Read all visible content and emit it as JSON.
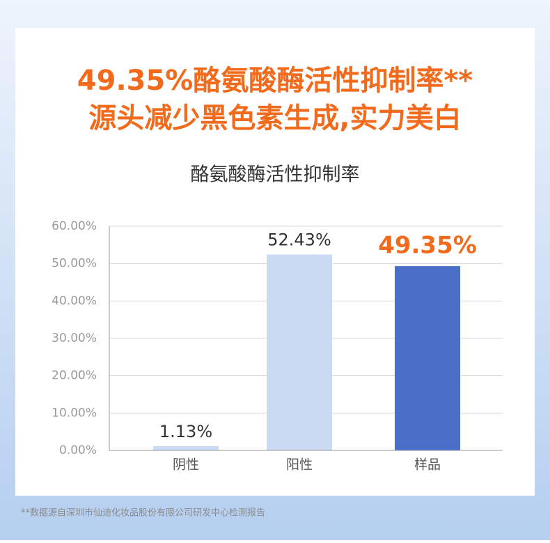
{
  "headline": [
    "49.35%酪氨酸酶活性抑制率**",
    "源头减少黑色素生成,实力美白"
  ],
  "chart_data": {
    "type": "bar",
    "title": "酪氨酸酶活性抑制率",
    "categories": [
      "阴性",
      "阳性",
      "样品"
    ],
    "values": [
      1.13,
      52.43,
      49.35
    ],
    "value_labels": [
      "1.13%",
      "52.43%",
      "49.35%"
    ],
    "colors": [
      "#c9daf2",
      "#c9daf2",
      "#4a6fc9"
    ],
    "value_label_colors": [
      "#333333",
      "#333333",
      "#f26a1b"
    ],
    "ylim": [
      0,
      60
    ],
    "yticks": [
      {
        "value": 0,
        "label": "0.00%"
      },
      {
        "value": 10,
        "label": "10.00%"
      },
      {
        "value": 20,
        "label": "20.00%"
      },
      {
        "value": 30,
        "label": "30.00%"
      },
      {
        "value": 40,
        "label": "40.00%"
      },
      {
        "value": 50,
        "label": "50.00%"
      },
      {
        "value": 60,
        "label": "60.00%"
      }
    ],
    "grid": true
  },
  "footnote": "**数据源自深圳市仙迪化妆品股份有限公司研发中心检测报告"
}
